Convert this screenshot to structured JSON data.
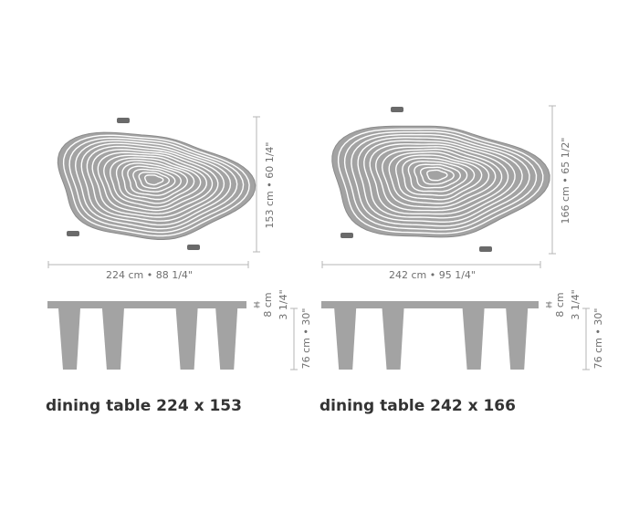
{
  "tables": [
    {
      "depth_label": "153 cm • 60 1/4\"",
      "width_label": "224 cm • 88 1/4\"",
      "top_marker": "H",
      "top_cm": "8 cm",
      "top_inch": "3 1/4\"",
      "leg_label": "76 cm • 30\"",
      "caption": "dining table 224 x 153"
    },
    {
      "depth_label": "166 cm • 65 1/2\"",
      "width_label": "242 cm • 95 1/4\"",
      "top_marker": "H",
      "top_cm": "8 cm",
      "top_inch": "3 1/4\"",
      "leg_label": "76 cm • 30\"",
      "caption": "dining table 242 x 166"
    }
  ]
}
